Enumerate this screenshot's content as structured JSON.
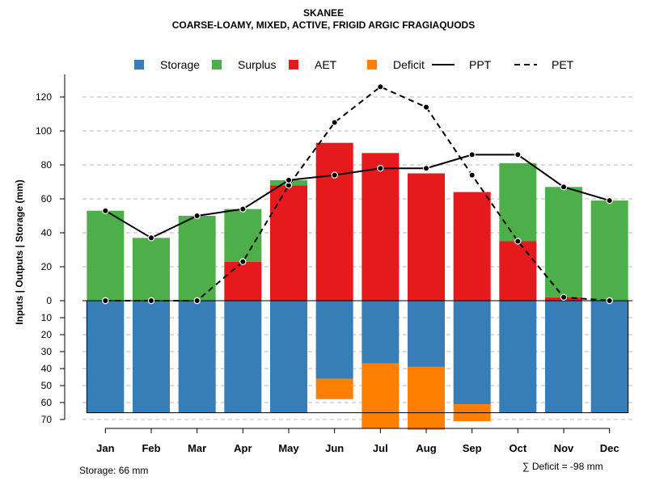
{
  "title": "SKANEE",
  "subtitle": "COARSE-LOAMY, MIXED, ACTIVE, FRIGID ARGIC FRAGIAQUODS",
  "ylabel": "Inputs | Outputs | Storage    (mm)",
  "storage_note": "Storage: 66 mm",
  "deficit_note": "∑ Deficit = -98 mm",
  "legend": [
    {
      "key": "storage",
      "label": "Storage",
      "kind": "box",
      "color": "#377EB8"
    },
    {
      "key": "surplus",
      "label": "Surplus",
      "kind": "box",
      "color": "#4DAF4A"
    },
    {
      "key": "aet",
      "label": "AET",
      "kind": "box",
      "color": "#E41A1C"
    },
    {
      "key": "deficit",
      "label": "Deficit",
      "kind": "box",
      "color": "#FF7F00"
    },
    {
      "key": "ppt",
      "label": "PPT",
      "kind": "solid",
      "color": "#000000"
    },
    {
      "key": "pet",
      "label": "PET",
      "kind": "dashed",
      "color": "#000000"
    }
  ],
  "chart_data": {
    "type": "bar",
    "title": "SKANEE",
    "subtitle": "COARSE-LOAMY, MIXED, ACTIVE, FRIGID ARGIC FRAGIAQUODS",
    "xlabel": "",
    "ylabel": "Inputs | Outputs | Storage    (mm)",
    "categories": [
      "Jan",
      "Feb",
      "Mar",
      "Apr",
      "May",
      "Jun",
      "Jul",
      "Aug",
      "Sep",
      "Oct",
      "Nov",
      "Dec"
    ],
    "ylim_top": [
      0,
      130
    ],
    "ylim_bottom": [
      0,
      70
    ],
    "yticks_top": [
      0,
      20,
      40,
      60,
      80,
      100,
      120
    ],
    "yticks_bottom": [
      10,
      20,
      30,
      40,
      50,
      60,
      70
    ],
    "storage_capacity": 66,
    "series": [
      {
        "name": "AET",
        "color": "#E41A1C",
        "values": [
          0,
          0,
          0,
          23,
          68,
          93,
          87,
          75,
          64,
          35,
          2,
          0
        ]
      },
      {
        "name": "Surplus",
        "color": "#4DAF4A",
        "values": [
          53,
          37,
          50,
          31,
          3,
          0,
          0,
          0,
          0,
          46,
          65,
          59
        ]
      },
      {
        "name": "Storage",
        "color": "#377EB8",
        "values": [
          66,
          66,
          66,
          66,
          66,
          46,
          37,
          39,
          61,
          66,
          66,
          66
        ]
      },
      {
        "name": "Deficit",
        "color": "#FF7F00",
        "values": [
          0,
          0,
          0,
          0,
          0,
          12,
          38,
          37,
          10,
          0,
          0,
          0
        ]
      },
      {
        "name": "PPT",
        "color": "#000000",
        "values": [
          53,
          37,
          50,
          54,
          71,
          74,
          78,
          78,
          86,
          86,
          67,
          59
        ]
      },
      {
        "name": "PET",
        "color": "#000000",
        "values": [
          0,
          0,
          0,
          23,
          68,
          105,
          126,
          114,
          74,
          35,
          2,
          0
        ]
      }
    ],
    "grid": true,
    "legend_position": "top"
  }
}
